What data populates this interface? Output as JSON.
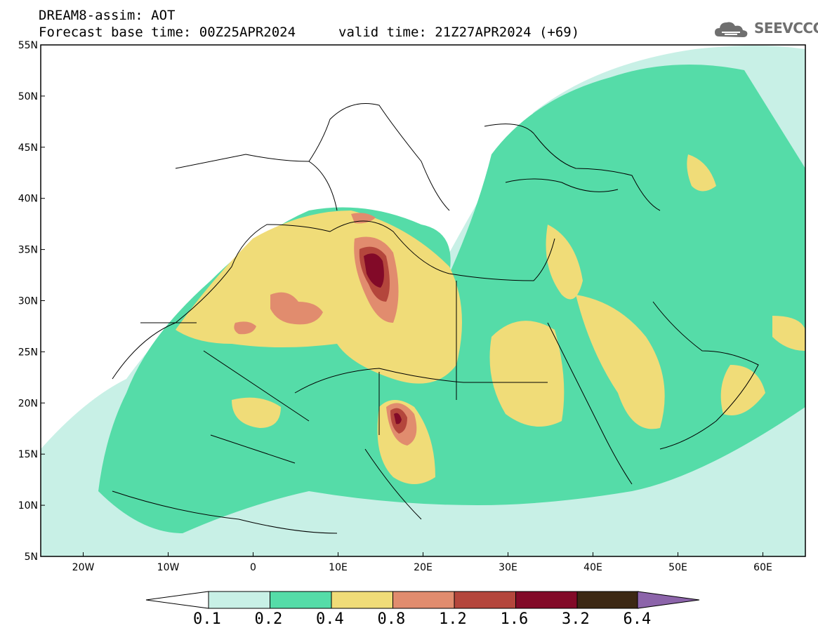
{
  "header": {
    "title_line1": "DREAM8-assim: AOT",
    "title_line2": "Forecast base time: 00Z25APR2024",
    "valid_time": "valid time: 21Z27APR2024 (+69)"
  },
  "logo": {
    "text": "SEEVCCC",
    "icon": "cloud-icon"
  },
  "map": {
    "lon_range": [
      -25,
      65
    ],
    "lat_range": [
      5,
      55
    ],
    "y_ticks": [
      "55N",
      "50N",
      "45N",
      "40N",
      "35N",
      "30N",
      "25N",
      "20N",
      "15N",
      "10N",
      "5N"
    ],
    "x_ticks": [
      "20W",
      "10W",
      "0",
      "10E",
      "20E",
      "30E",
      "40E",
      "50E",
      "60E"
    ]
  },
  "colorbar": {
    "levels": [
      "0.1",
      "0.2",
      "0.4",
      "0.8",
      "1.2",
      "1.6",
      "3.2",
      "6.4"
    ],
    "colors": [
      "#c8f0e6",
      "#55dca8",
      "#f0dc78",
      "#e18c6e",
      "#b4463c",
      "#820a28",
      "#3c2814",
      "#8c64aa"
    ]
  }
}
